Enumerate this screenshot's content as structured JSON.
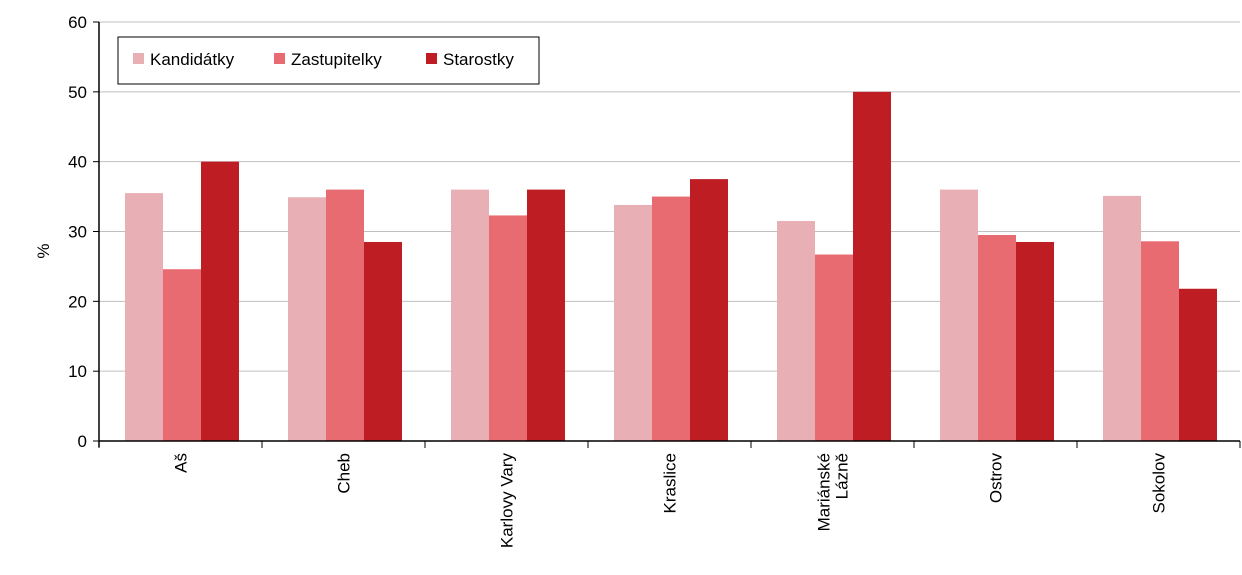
{
  "chart_data": {
    "type": "bar",
    "ylabel": "%",
    "ylim": [
      0,
      60
    ],
    "yticks": [
      0,
      10,
      20,
      30,
      40,
      50,
      60
    ],
    "grid": true,
    "legend_position": "top-left",
    "categories": [
      "Aš",
      "Cheb",
      "Karlovy Vary",
      "Kraslice",
      "Mariánské\nLázně",
      "Ostrov",
      "Sokolov"
    ],
    "series": [
      {
        "name": "Kandidátky",
        "color": "#e8b0b4",
        "values": [
          35.5,
          34.9,
          36.0,
          33.8,
          31.5,
          36.0,
          35.1
        ]
      },
      {
        "name": "Zastupitelky",
        "color": "#e96b72",
        "values": [
          24.6,
          36.0,
          32.3,
          35.0,
          26.7,
          29.5,
          28.6
        ]
      },
      {
        "name": "Starostky",
        "color": "#be1d24",
        "values": [
          40.0,
          28.5,
          36.0,
          37.5,
          50.0,
          28.5,
          21.8
        ]
      }
    ]
  }
}
